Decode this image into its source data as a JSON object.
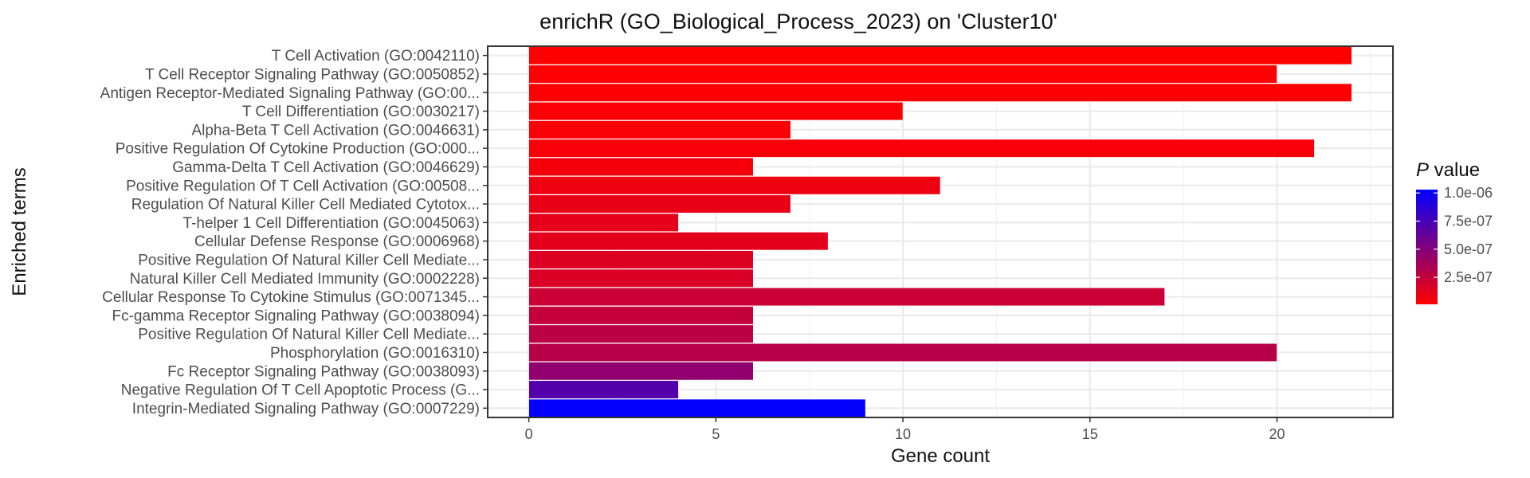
{
  "chart_data": {
    "type": "bar",
    "orientation": "horizontal",
    "title": "enrichR (GO_Biological_Process_2023) on 'Cluster10'",
    "xlabel": "Gene count",
    "ylabel": "Enriched terms",
    "xlim": [
      -1.1,
      23.1
    ],
    "xticks": [
      0,
      5,
      10,
      15,
      20
    ],
    "grid": true,
    "legend": {
      "title_italic": "P",
      "title_rest": " value",
      "placement": "right",
      "labels": [
        "1.0e-06",
        "7.5e-07",
        "5.0e-07",
        "2.5e-07"
      ],
      "label_values": [
        1e-06,
        7.5e-07,
        5e-07,
        2.5e-07
      ],
      "range": [
        1e-08,
        1.03e-06
      ],
      "color_low": "#ff0000",
      "color_high": "#0000ff"
    },
    "categories": [
      "T Cell Activation (GO:0042110)",
      "T Cell Receptor Signaling Pathway (GO:0050852)",
      "Antigen Receptor-Mediated Signaling Pathway (GO:00...",
      "T Cell Differentiation (GO:0030217)",
      "Alpha-Beta T Cell Activation (GO:0046631)",
      "Positive Regulation Of Cytokine Production (GO:000...",
      "Gamma-Delta T Cell Activation (GO:0046629)",
      "Positive Regulation Of T Cell Activation (GO:00508...",
      "Regulation Of Natural Killer Cell Mediated Cytotox...",
      "T-helper 1 Cell Differentiation (GO:0045063)",
      "Cellular Defense Response (GO:0006968)",
      "Positive Regulation Of Natural Killer Cell Mediate...",
      "Natural Killer Cell Mediated Immunity (GO:0002228)",
      "Cellular Response To Cytokine Stimulus (GO:0071345...",
      "Fc-gamma Receptor Signaling Pathway (GO:0038094)",
      "Positive Regulation Of Natural Killer Cell Mediate...",
      "Phosphorylation (GO:0016310)",
      "Fc Receptor Signaling Pathway (GO:0038093)",
      "Negative Regulation Of T Cell Apoptotic Process (G...",
      "Integrin-Mediated Signaling Pathway (GO:0007229)"
    ],
    "values": [
      22,
      20,
      22,
      10,
      7,
      21,
      6,
      11,
      7,
      4,
      8,
      6,
      6,
      17,
      6,
      6,
      20,
      6,
      4,
      9
    ],
    "p_values": [
      1.2e-08,
      1.5e-08,
      1.8e-08,
      3e-08,
      3.5e-08,
      4e-08,
      5e-08,
      8e-08,
      1e-07,
      1.1e-07,
      1.2e-07,
      1.5e-07,
      1.6e-07,
      2.2e-07,
      2.5e-07,
      2.8e-07,
      3e-07,
      4.5e-07,
      7e-07,
      1.02e-06
    ]
  }
}
